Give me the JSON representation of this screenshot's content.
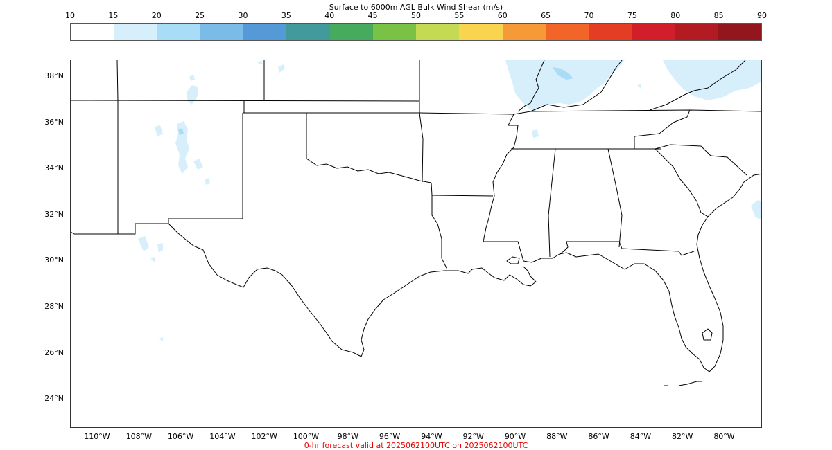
{
  "colorbar": {
    "title": "Surface to 6000m AGL Bulk Wind Shear (m/s)",
    "ticks": [
      "10",
      "15",
      "20",
      "25",
      "30",
      "35",
      "40",
      "45",
      "50",
      "55",
      "60",
      "65",
      "70",
      "75",
      "80",
      "85",
      "90"
    ],
    "colors": [
      "#ffffff",
      "#d6effb",
      "#a9dcf6",
      "#7abbe7",
      "#5599d6",
      "#429a9c",
      "#47ab5d",
      "#7ac246",
      "#c4da53",
      "#f9d44f",
      "#f59a36",
      "#f26428",
      "#e33d24",
      "#d11e2a",
      "#b31a21",
      "#93161c"
    ]
  },
  "map": {
    "latitude_labels": [
      "38°N",
      "36°N",
      "34°N",
      "32°N",
      "30°N",
      "28°N",
      "26°N",
      "24°N"
    ],
    "longitude_labels": [
      "110°W",
      "108°W",
      "106°W",
      "104°W",
      "102°W",
      "100°W",
      "98°W",
      "96°W",
      "94°W",
      "92°W",
      "90°W",
      "88°W",
      "86°W",
      "84°W",
      "82°W",
      "80°W"
    ],
    "shading_color": "#d6effb",
    "shading_color_dark": "#a9dcf6",
    "border_color": "#000000"
  },
  "footer": {
    "forecast_note": "0-hr forecast valid at 2025062100UTC on 2025062100UTC",
    "note_color": "#e60000"
  }
}
